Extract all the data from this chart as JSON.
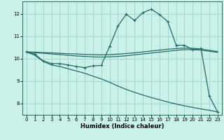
{
  "xlabel": "Humidex (Indice chaleur)",
  "bg_color": "#caf0ea",
  "line_color": "#236b62",
  "grid_color": "#9dd8d0",
  "xlim": [
    -0.5,
    23.5
  ],
  "ylim": [
    7.5,
    12.55
  ],
  "yticks": [
    8,
    9,
    10,
    11,
    12
  ],
  "xticks": [
    0,
    1,
    2,
    3,
    4,
    5,
    6,
    7,
    8,
    9,
    10,
    11,
    12,
    13,
    14,
    15,
    16,
    17,
    18,
    19,
    20,
    21,
    22,
    23
  ],
  "line1_x": [
    0,
    1,
    2,
    3,
    4,
    5,
    6,
    7,
    8,
    9,
    10,
    11,
    12,
    13,
    14,
    15,
    16,
    17,
    18,
    19,
    20,
    21,
    22,
    23
  ],
  "line1_y": [
    10.3,
    10.2,
    9.9,
    9.78,
    9.78,
    9.72,
    9.65,
    9.6,
    9.68,
    9.7,
    10.55,
    11.45,
    11.98,
    11.7,
    12.05,
    12.2,
    11.97,
    11.65,
    10.6,
    10.6,
    10.4,
    10.45,
    8.33,
    7.63
  ],
  "line2_x": [
    0,
    1,
    2,
    3,
    4,
    5,
    6,
    7,
    8,
    9,
    10,
    11,
    12,
    13,
    14,
    15,
    16,
    17,
    18,
    19,
    20,
    21,
    22,
    23
  ],
  "line2_y": [
    10.3,
    10.27,
    10.24,
    10.21,
    10.18,
    10.15,
    10.12,
    10.1,
    10.08,
    10.07,
    10.08,
    10.1,
    10.13,
    10.17,
    10.21,
    10.25,
    10.29,
    10.33,
    10.37,
    10.4,
    10.4,
    10.38,
    10.33,
    10.28
  ],
  "line3_x": [
    0,
    1,
    2,
    3,
    4,
    5,
    6,
    7,
    8,
    9,
    10,
    11,
    12,
    13,
    14,
    15,
    16,
    17,
    18,
    19,
    20,
    21,
    22,
    23
  ],
  "line3_y": [
    10.3,
    10.29,
    10.27,
    10.26,
    10.24,
    10.22,
    10.21,
    10.19,
    10.18,
    10.17,
    10.18,
    10.2,
    10.23,
    10.26,
    10.3,
    10.34,
    10.38,
    10.42,
    10.45,
    10.47,
    10.46,
    10.43,
    10.37,
    10.32
  ],
  "line4_x": [
    0,
    1,
    2,
    3,
    4,
    5,
    6,
    7,
    8,
    9,
    10,
    11,
    12,
    13,
    14,
    15,
    16,
    17,
    18,
    19,
    20,
    21,
    22,
    23
  ],
  "line4_y": [
    10.3,
    10.15,
    9.88,
    9.72,
    9.65,
    9.55,
    9.45,
    9.35,
    9.22,
    9.1,
    8.95,
    8.78,
    8.63,
    8.5,
    8.38,
    8.27,
    8.17,
    8.07,
    7.98,
    7.9,
    7.83,
    7.76,
    7.7,
    7.63
  ]
}
